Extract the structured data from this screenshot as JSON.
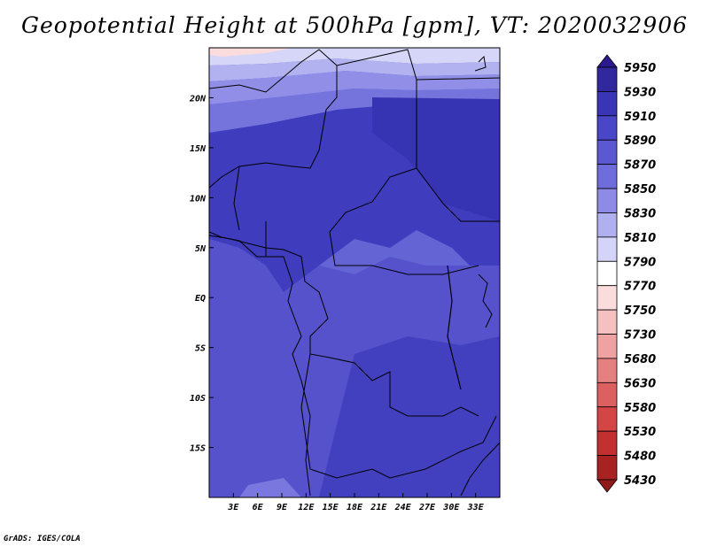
{
  "title": "Geopotential Height at 500hPa [gpm], VT: 2020032906",
  "footer": "GrADS: IGES/COLA",
  "map": {
    "lon_range": [
      0,
      36
    ],
    "lat_range": [
      -20,
      25
    ],
    "x_ticks": [
      {
        "lon": 3,
        "label": "3E"
      },
      {
        "lon": 6,
        "label": "6E"
      },
      {
        "lon": 9,
        "label": "9E"
      },
      {
        "lon": 12,
        "label": "12E"
      },
      {
        "lon": 15,
        "label": "15E"
      },
      {
        "lon": 18,
        "label": "18E"
      },
      {
        "lon": 21,
        "label": "21E"
      },
      {
        "lon": 24,
        "label": "24E"
      },
      {
        "lon": 27,
        "label": "27E"
      },
      {
        "lon": 30,
        "label": "30E"
      },
      {
        "lon": 33,
        "label": "33E"
      }
    ],
    "y_ticks": [
      {
        "lat": 20,
        "label": "20N"
      },
      {
        "lat": 15,
        "label": "15N"
      },
      {
        "lat": 10,
        "label": "10N"
      },
      {
        "lat": 5,
        "label": "5N"
      },
      {
        "lat": 0,
        "label": "EQ"
      },
      {
        "lat": -5,
        "label": "5S"
      },
      {
        "lat": -10,
        "label": "10S"
      },
      {
        "lat": -15,
        "label": "15S"
      }
    ]
  },
  "colorbar": {
    "levels": [
      "5950",
      "5930",
      "5910",
      "5890",
      "5870",
      "5850",
      "5830",
      "5810",
      "5790",
      "5770",
      "5750",
      "5730",
      "5680",
      "5630",
      "5580",
      "5530",
      "5480",
      "5430"
    ],
    "colors": [
      "#2b1a8f",
      "#30289c",
      "#3a35b4",
      "#4a46c8",
      "#5c59d0",
      "#6f6ddc",
      "#8d8be6",
      "#b0afef",
      "#d4d4f8",
      "#ffffff",
      "#fadcdc",
      "#f5c0c0",
      "#eea2a2",
      "#e58080",
      "#dd6060",
      "#d44545",
      "#c23030",
      "#a82222",
      "#8e1a1a"
    ]
  }
}
